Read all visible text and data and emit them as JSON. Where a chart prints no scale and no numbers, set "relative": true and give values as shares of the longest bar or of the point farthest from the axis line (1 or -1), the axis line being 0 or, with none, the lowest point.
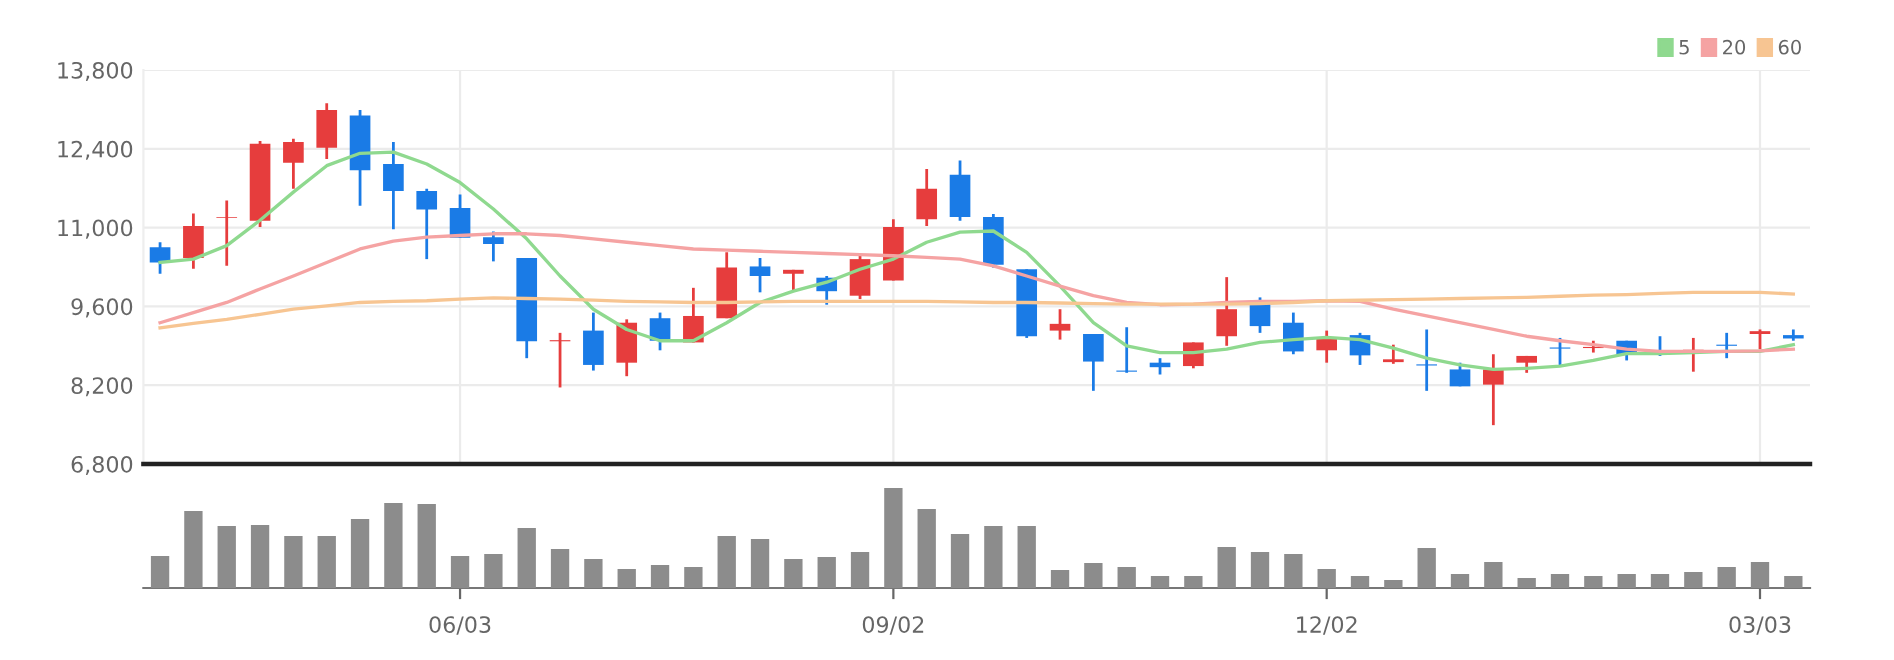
{
  "chart_data": [
    {
      "type": "candlestick",
      "categories": [
        null,
        null,
        null,
        null,
        null,
        null,
        null,
        null,
        null,
        null,
        null,
        null,
        null,
        null,
        null,
        null,
        null,
        null,
        null,
        null,
        null,
        null,
        null,
        null,
        null,
        null,
        null,
        null,
        null,
        null,
        null,
        null,
        null,
        null,
        null,
        null,
        null,
        null,
        null,
        null,
        null,
        null,
        null,
        null,
        null,
        null,
        null,
        null,
        null,
        null
      ],
      "ohlc": [
        [
          10650,
          10740,
          10180,
          10380
        ],
        [
          10460,
          11250,
          10270,
          11030
        ],
        [
          11170,
          11480,
          10320,
          11180
        ],
        [
          11120,
          12540,
          11010,
          12490
        ],
        [
          12150,
          12580,
          11690,
          12520
        ],
        [
          12420,
          13210,
          12220,
          13090
        ],
        [
          12990,
          13090,
          11390,
          12020
        ],
        [
          12130,
          12520,
          10970,
          11650
        ],
        [
          11650,
          11690,
          10440,
          11320
        ],
        [
          11350,
          11590,
          10820,
          10820
        ],
        [
          10830,
          10930,
          10400,
          10710
        ],
        [
          10460,
          10460,
          8680,
          8980
        ],
        [
          8980,
          9130,
          8160,
          9000
        ],
        [
          9170,
          9490,
          8460,
          8560
        ],
        [
          8600,
          9370,
          8360,
          9310
        ],
        [
          9390,
          9490,
          8820,
          8990
        ],
        [
          8960,
          9930,
          8960,
          9430
        ],
        [
          9390,
          10560,
          9390,
          10290
        ],
        [
          10310,
          10460,
          9850,
          10140
        ],
        [
          10180,
          10250,
          9870,
          10250
        ],
        [
          10110,
          10140,
          9630,
          9870
        ],
        [
          9790,
          10530,
          9730,
          10440
        ],
        [
          10060,
          11150,
          10060,
          11010
        ],
        [
          11150,
          12040,
          11030,
          11690
        ],
        [
          11940,
          12190,
          11120,
          11190
        ],
        [
          11190,
          11240,
          10290,
          10340
        ],
        [
          10260,
          10260,
          9040,
          9070
        ],
        [
          9170,
          9550,
          9010,
          9290
        ],
        [
          9110,
          9110,
          8100,
          8620
        ],
        [
          8460,
          9230,
          8420,
          8440
        ],
        [
          8600,
          8680,
          8390,
          8520
        ],
        [
          8540,
          8960,
          8500,
          8960
        ],
        [
          9070,
          10120,
          8900,
          9550
        ],
        [
          9670,
          9760,
          9130,
          9250
        ],
        [
          9310,
          9490,
          8750,
          8800
        ],
        [
          8820,
          9170,
          8600,
          9050
        ],
        [
          9090,
          9130,
          8560,
          8730
        ],
        [
          8610,
          8920,
          8580,
          8660
        ],
        [
          8570,
          9190,
          8100,
          8550
        ],
        [
          8480,
          8600,
          8180,
          8180
        ],
        [
          8210,
          8750,
          7490,
          8480
        ],
        [
          8600,
          8720,
          8420,
          8720
        ],
        [
          8870,
          9040,
          8560,
          8850
        ],
        [
          8860,
          8990,
          8780,
          8880
        ],
        [
          8990,
          8990,
          8640,
          8750
        ],
        [
          8770,
          9070,
          8720,
          8750
        ],
        [
          8810,
          9040,
          8440,
          8830
        ],
        [
          8920,
          9130,
          8680,
          8900
        ],
        [
          9110,
          9190,
          8840,
          9160
        ],
        [
          9090,
          9190,
          8990,
          9030
        ]
      ],
      "colors": [
        "#1a7be6",
        "#e63d3d",
        "#e63d3d",
        "#e63d3d",
        "#e63d3d",
        "#e63d3d",
        "#1a7be6",
        "#1a7be6",
        "#1a7be6",
        "#1a7be6",
        "#1a7be6",
        "#1a7be6",
        "#e63d3d",
        "#1a7be6",
        "#e63d3d",
        "#1a7be6",
        "#e63d3d",
        "#e63d3d",
        "#1a7be6",
        "#e63d3d",
        "#1a7be6",
        "#e63d3d",
        "#e63d3d",
        "#e63d3d",
        "#1a7be6",
        "#1a7be6",
        "#1a7be6",
        "#e63d3d",
        "#1a7be6",
        "#1a7be6",
        "#1a7be6",
        "#e63d3d",
        "#e63d3d",
        "#1a7be6",
        "#1a7be6",
        "#e63d3d",
        "#1a7be6",
        "#e63d3d",
        "#1a7be6",
        "#1a7be6",
        "#e63d3d",
        "#e63d3d",
        "#1a7be6",
        "#e63d3d",
        "#1a7be6",
        "#1a7be6",
        "#e63d3d",
        "#1a7be6",
        "#e63d3d",
        "#1a7be6"
      ],
      "series": [
        {
          "name": "5",
          "type": "line",
          "color": "#8fd98f",
          "values": [
            10380,
            10440,
            10680,
            11130,
            11630,
            12100,
            12320,
            12340,
            12130,
            11800,
            11330,
            10800,
            10140,
            9550,
            9190,
            8990,
            8990,
            9310,
            9670,
            9870,
            10030,
            10260,
            10440,
            10740,
            10920,
            10940,
            10560,
            9960,
            9310,
            8900,
            8780,
            8780,
            8840,
            8960,
            9010,
            9050,
            9010,
            8860,
            8680,
            8560,
            8480,
            8500,
            8540,
            8640,
            8760,
            8760,
            8780,
            8800,
            8800,
            8920
          ]
        },
        {
          "name": "20",
          "type": "line",
          "color": "#f5a3a3",
          "values": [
            9310,
            9490,
            9670,
            9910,
            10140,
            10380,
            10620,
            10760,
            10830,
            10860,
            10890,
            10890,
            10860,
            10800,
            10740,
            10680,
            10620,
            10600,
            10580,
            10560,
            10540,
            10520,
            10500,
            10470,
            10440,
            10320,
            10140,
            9960,
            9790,
            9670,
            9630,
            9640,
            9670,
            9690,
            9690,
            9700,
            9690,
            9550,
            9430,
            9310,
            9190,
            9070,
            8990,
            8920,
            8840,
            8800,
            8800,
            8800,
            8810,
            8840
          ]
        },
        {
          "name": "60",
          "type": "line",
          "color": "#f7c592",
          "values": [
            9220,
            9300,
            9370,
            9460,
            9550,
            9610,
            9670,
            9690,
            9700,
            9730,
            9750,
            9740,
            9730,
            9710,
            9690,
            9680,
            9670,
            9670,
            9680,
            9690,
            9690,
            9690,
            9690,
            9690,
            9680,
            9670,
            9670,
            9660,
            9650,
            9640,
            9640,
            9640,
            9640,
            9650,
            9670,
            9700,
            9710,
            9720,
            9730,
            9740,
            9750,
            9760,
            9780,
            9800,
            9810,
            9830,
            9850,
            9850,
            9850,
            9820
          ]
        }
      ],
      "ylim": [
        6800,
        13800
      ],
      "yticks": [
        {
          "value": 6800,
          "label": "6,800"
        },
        {
          "value": 8200,
          "label": "8,200"
        },
        {
          "value": 9600,
          "label": "9,600"
        },
        {
          "value": 11000,
          "label": "11,000"
        },
        {
          "value": 12400,
          "label": "12,400"
        },
        {
          "value": 13800,
          "label": "13,800"
        }
      ],
      "grid": true,
      "legend": "top right",
      "tick_labels": "y"
    },
    {
      "type": "bar",
      "relative": true,
      "categories": [
        null,
        null,
        null,
        null,
        null,
        null,
        null,
        null,
        null,
        "06/03",
        null,
        null,
        null,
        null,
        null,
        null,
        null,
        null,
        null,
        null,
        null,
        null,
        "09/02",
        null,
        null,
        null,
        null,
        null,
        null,
        null,
        null,
        null,
        null,
        null,
        null,
        "12/02",
        null,
        null,
        null,
        null,
        null,
        null,
        null,
        null,
        null,
        null,
        null,
        null,
        "03/03",
        null
      ],
      "values": [
        0.32,
        0.77,
        0.62,
        0.63,
        0.52,
        0.52,
        0.69,
        0.85,
        0.84,
        0.32,
        0.34,
        0.6,
        0.39,
        0.29,
        0.19,
        0.23,
        0.21,
        0.52,
        0.49,
        0.29,
        0.31,
        0.36,
        1,
        0.79,
        0.54,
        0.62,
        0.62,
        0.18,
        0.25,
        0.21,
        0.12,
        0.12,
        0.41,
        0.36,
        0.34,
        0.19,
        0.12,
        0.08,
        0.4,
        0.14,
        0.26,
        0.1,
        0.14,
        0.12,
        0.14,
        0.14,
        0.16,
        0.21,
        0.26,
        0.12
      ],
      "color": "#8c8c8c",
      "tick_labels": "x",
      "grid": false
    }
  ]
}
